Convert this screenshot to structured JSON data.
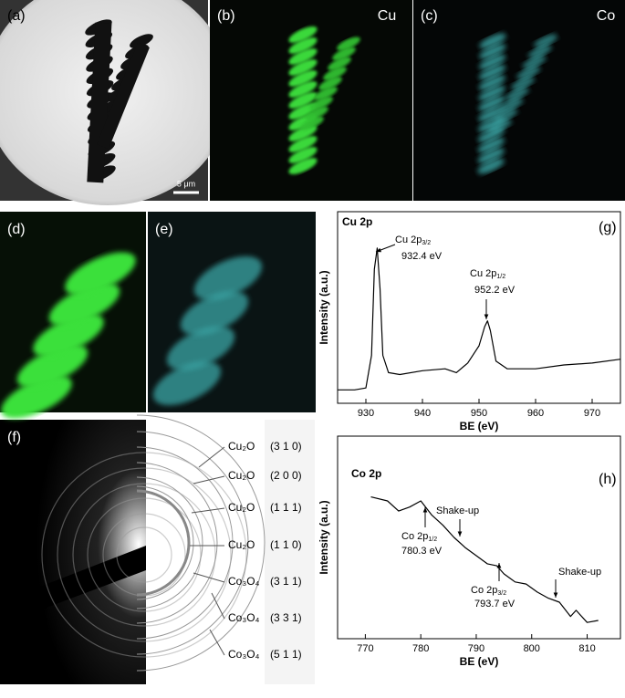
{
  "panels": {
    "a": "(a)",
    "b": "(b)",
    "c": "(c)",
    "d": "(d)",
    "e": "(e)",
    "f": "(f)"
  },
  "element_labels": {
    "b": "Cu",
    "c": "Co"
  },
  "scale_bar": "5 μm",
  "rings": [
    {
      "phase": "Cu₂O",
      "hkl": "(3 1 0)"
    },
    {
      "phase": "Cu₂O",
      "hkl": "(2 0 0)"
    },
    {
      "phase": "Cu₂O",
      "hkl": "(1 1 1)"
    },
    {
      "phase": "Cu₂O",
      "hkl": "(1 1 0)"
    },
    {
      "phase": "Co₃O₄",
      "hkl": "(3 1 1)"
    },
    {
      "phase": "Co₃O₄",
      "hkl": "(3 3 1)"
    },
    {
      "phase": "Co₃O₄",
      "hkl": "(5 1 1)"
    }
  ],
  "chart_data": [
    {
      "type": "line",
      "title": "Cu 2p",
      "panel": "(g)",
      "x_label": "BE (eV)",
      "y_label": "Intensity (a.u.)",
      "color": "#000000",
      "x": [
        925,
        928,
        930,
        931,
        931.5,
        932,
        932.5,
        933,
        934,
        936,
        940,
        944,
        946,
        948,
        950,
        951,
        951.5,
        952,
        953,
        955,
        960,
        965,
        970,
        975
      ],
      "values": [
        7,
        7,
        8,
        25,
        70,
        81,
        60,
        25,
        16,
        15,
        17,
        18,
        16,
        21,
        30,
        40,
        43,
        38,
        22,
        18,
        18,
        20,
        21,
        23
      ],
      "xlim": [
        925,
        975
      ],
      "xticks": [
        930,
        940,
        950,
        960,
        970
      ],
      "ylim": [
        0,
        100
      ],
      "annotations": [
        {
          "label": "Cu 2p",
          "sub": "3/2",
          "energy": "932.4 eV"
        },
        {
          "label": "Cu 2p",
          "sub": "1/2",
          "energy": "952.2 eV"
        }
      ]
    },
    {
      "type": "line",
      "title": "Co 2p",
      "panel": "(h)",
      "x_label": "BE (eV)",
      "y_label": "Intensity (a.u.)",
      "color": "#000000",
      "x": [
        771,
        774,
        776,
        778,
        780,
        782,
        784,
        786,
        788,
        790,
        792,
        793.7,
        795,
        797,
        799,
        801,
        803,
        805,
        807,
        808,
        810,
        812
      ],
      "values": [
        70,
        68,
        63,
        65,
        68,
        61,
        56,
        50,
        45,
        41,
        37,
        36,
        32,
        28,
        27,
        23,
        20,
        18,
        11,
        14,
        8,
        9
      ],
      "xlim": [
        765,
        816
      ],
      "xticks": [
        770,
        780,
        790,
        800,
        810
      ],
      "ylim": [
        0,
        100
      ],
      "annotations": [
        {
          "label": "Shake-up"
        },
        {
          "label": "Co 2p",
          "sub": "1/2",
          "energy": "780.3 eV"
        },
        {
          "label": "Co 2p",
          "sub": "3/2",
          "energy": "793.7 eV"
        },
        {
          "label": "Shake-up"
        }
      ]
    }
  ]
}
